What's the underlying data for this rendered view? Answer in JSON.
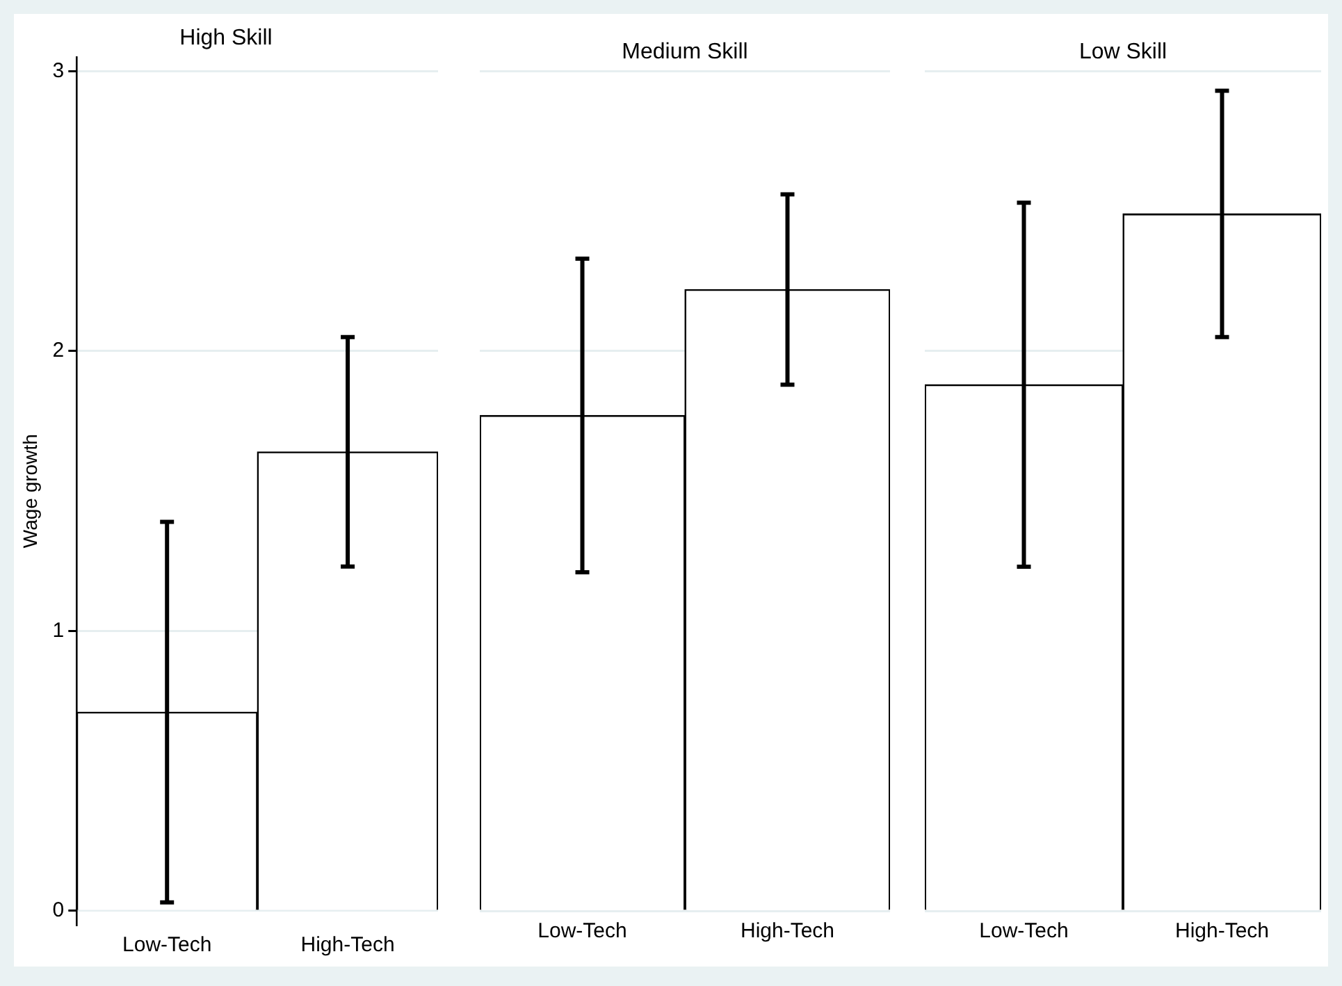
{
  "chart_data": [
    {
      "type": "bar",
      "title": "High Skill",
      "ylabel": "Wage growth",
      "categories": [
        "Low-Tech",
        "High-Tech"
      ],
      "values": [
        0.71,
        1.64
      ],
      "errors": [
        [
          0.03,
          1.39
        ],
        [
          1.23,
          2.05
        ]
      ],
      "color": "#ffffff",
      "ylim": [
        -0.05,
        3.05
      ],
      "yticks": [
        0,
        1,
        2,
        3
      ],
      "grid": "y"
    },
    {
      "type": "bar",
      "title": "Medium Skill",
      "categories": [
        "Low-Tech",
        "High-Tech"
      ],
      "values": [
        1.77,
        2.22
      ],
      "errors": [
        [
          1.21,
          2.33
        ],
        [
          1.88,
          2.56
        ]
      ],
      "color": "#ffffff",
      "ylim": [
        0,
        3
      ],
      "yticks": [
        0,
        1,
        2,
        3
      ],
      "grid": "y",
      "tick_labels": "x"
    },
    {
      "type": "bar",
      "title": "Low Skill",
      "categories": [
        "Low-Tech",
        "High-Tech"
      ],
      "values": [
        1.88,
        2.49
      ],
      "errors": [
        [
          1.23,
          2.53
        ],
        [
          2.05,
          2.93
        ]
      ],
      "color": "#ffffff",
      "ylim": [
        0,
        3
      ],
      "yticks": [
        0,
        1,
        2,
        3
      ],
      "grid": "y",
      "tick_labels": "x"
    }
  ]
}
